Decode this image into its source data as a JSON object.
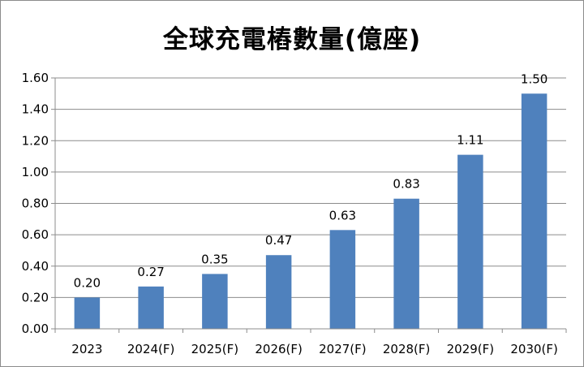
{
  "chart_data": {
    "type": "bar",
    "title": "全球充電樁數量(億座)",
    "categories": [
      "2023",
      "2024(F)",
      "2025(F)",
      "2026(F)",
      "2027(F)",
      "2028(F)",
      "2029(F)",
      "2030(F)"
    ],
    "values": [
      0.2,
      0.27,
      0.35,
      0.47,
      0.63,
      0.83,
      1.11,
      1.5
    ],
    "data_labels": [
      "0.20",
      "0.27",
      "0.35",
      "0.47",
      "0.63",
      "0.83",
      "1.11",
      "1.50"
    ],
    "y_ticks": [
      "0.00",
      "0.20",
      "0.40",
      "0.60",
      "0.80",
      "1.00",
      "1.20",
      "1.40",
      "1.60"
    ],
    "ylim": [
      0,
      1.6
    ],
    "xlabel": "",
    "ylabel": "",
    "grid": true,
    "legend": "none",
    "bar_color": "#4f81bd",
    "grid_color": "#8c8c8c"
  }
}
